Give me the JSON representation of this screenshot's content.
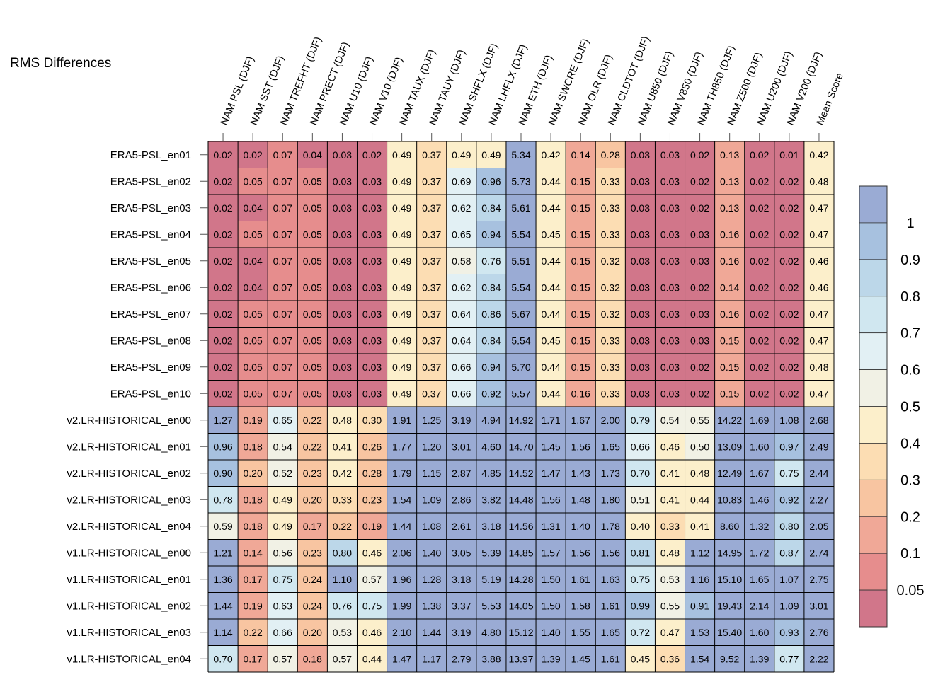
{
  "chart_data": {
    "type": "heatmap",
    "title": "RMS Differences",
    "columns": [
      "NAM PSL (DJF)",
      "NAM SST (DJF)",
      "NAM TREFHT (DJF)",
      "NAM PRECT (DJF)",
      "NAM U10 (DJF)",
      "NAM V10 (DJF)",
      "NAM TAUX (DJF)",
      "NAM TAUY (DJF)",
      "NAM SHFLX (DJF)",
      "NAM LHFLX (DJF)",
      "NAM ETH (DJF)",
      "NAM SWCRE (DJF)",
      "NAM OLR (DJF)",
      "NAM CLDTOT (DJF)",
      "NAM U850 (DJF)",
      "NAM V850 (DJF)",
      "NAM TH850 (DJF)",
      "NAM Z500 (DJF)",
      "NAM U200 (DJF)",
      "NAM V200 (DJF)",
      "Mean Score"
    ],
    "rows": [
      "ERA5-PSL_en01",
      "ERA5-PSL_en02",
      "ERA5-PSL_en03",
      "ERA5-PSL_en04",
      "ERA5-PSL_en05",
      "ERA5-PSL_en06",
      "ERA5-PSL_en07",
      "ERA5-PSL_en08",
      "ERA5-PSL_en09",
      "ERA5-PSL_en10",
      "v2.LR-HISTORICAL_en00",
      "v2.LR-HISTORICAL_en01",
      "v2.LR-HISTORICAL_en02",
      "v2.LR-HISTORICAL_en03",
      "v2.LR-HISTORICAL_en04",
      "v1.LR-HISTORICAL_en00",
      "v1.LR-HISTORICAL_en01",
      "v1.LR-HISTORICAL_en02",
      "v1.LR-HISTORICAL_en03",
      "v1.LR-HISTORICAL_en04"
    ],
    "values": [
      [
        "0.02",
        "0.02",
        "0.07",
        "0.04",
        "0.03",
        "0.02",
        "0.49",
        "0.37",
        "0.49",
        "0.49",
        "5.34",
        "0.42",
        "0.14",
        "0.28",
        "0.03",
        "0.03",
        "0.02",
        "0.13",
        "0.02",
        "0.01",
        "0.42"
      ],
      [
        "0.02",
        "0.05",
        "0.07",
        "0.05",
        "0.03",
        "0.03",
        "0.49",
        "0.37",
        "0.69",
        "0.96",
        "5.73",
        "0.44",
        "0.15",
        "0.33",
        "0.03",
        "0.03",
        "0.02",
        "0.13",
        "0.02",
        "0.02",
        "0.48"
      ],
      [
        "0.02",
        "0.04",
        "0.07",
        "0.05",
        "0.03",
        "0.03",
        "0.49",
        "0.37",
        "0.62",
        "0.84",
        "5.61",
        "0.44",
        "0.15",
        "0.33",
        "0.03",
        "0.03",
        "0.02",
        "0.13",
        "0.02",
        "0.02",
        "0.47"
      ],
      [
        "0.02",
        "0.05",
        "0.07",
        "0.05",
        "0.03",
        "0.03",
        "0.49",
        "0.37",
        "0.65",
        "0.94",
        "5.54",
        "0.45",
        "0.15",
        "0.33",
        "0.03",
        "0.03",
        "0.03",
        "0.16",
        "0.02",
        "0.02",
        "0.47"
      ],
      [
        "0.02",
        "0.04",
        "0.07",
        "0.05",
        "0.03",
        "0.03",
        "0.49",
        "0.37",
        "0.58",
        "0.76",
        "5.51",
        "0.44",
        "0.15",
        "0.32",
        "0.03",
        "0.03",
        "0.03",
        "0.16",
        "0.02",
        "0.02",
        "0.46"
      ],
      [
        "0.02",
        "0.04",
        "0.07",
        "0.05",
        "0.03",
        "0.03",
        "0.49",
        "0.37",
        "0.62",
        "0.84",
        "5.54",
        "0.44",
        "0.15",
        "0.32",
        "0.03",
        "0.03",
        "0.02",
        "0.14",
        "0.02",
        "0.02",
        "0.46"
      ],
      [
        "0.02",
        "0.05",
        "0.07",
        "0.05",
        "0.03",
        "0.03",
        "0.49",
        "0.37",
        "0.64",
        "0.86",
        "5.67",
        "0.44",
        "0.15",
        "0.32",
        "0.03",
        "0.03",
        "0.03",
        "0.16",
        "0.02",
        "0.02",
        "0.47"
      ],
      [
        "0.02",
        "0.05",
        "0.07",
        "0.05",
        "0.03",
        "0.03",
        "0.49",
        "0.37",
        "0.64",
        "0.84",
        "5.54",
        "0.45",
        "0.15",
        "0.33",
        "0.03",
        "0.03",
        "0.03",
        "0.15",
        "0.02",
        "0.02",
        "0.47"
      ],
      [
        "0.02",
        "0.05",
        "0.07",
        "0.05",
        "0.03",
        "0.03",
        "0.49",
        "0.37",
        "0.66",
        "0.94",
        "5.70",
        "0.44",
        "0.15",
        "0.33",
        "0.03",
        "0.03",
        "0.02",
        "0.15",
        "0.02",
        "0.02",
        "0.48"
      ],
      [
        "0.02",
        "0.05",
        "0.07",
        "0.05",
        "0.03",
        "0.03",
        "0.49",
        "0.37",
        "0.66",
        "0.92",
        "5.57",
        "0.44",
        "0.16",
        "0.33",
        "0.03",
        "0.03",
        "0.02",
        "0.15",
        "0.02",
        "0.02",
        "0.47"
      ],
      [
        "1.27",
        "0.19",
        "0.65",
        "0.22",
        "0.48",
        "0.30",
        "1.91",
        "1.25",
        "3.19",
        "4.94",
        "14.92",
        "1.71",
        "1.67",
        "2.00",
        "0.79",
        "0.54",
        "0.55",
        "14.22",
        "1.69",
        "1.08",
        "2.68"
      ],
      [
        "0.96",
        "0.18",
        "0.54",
        "0.22",
        "0.41",
        "0.26",
        "1.77",
        "1.20",
        "3.01",
        "4.60",
        "14.70",
        "1.45",
        "1.56",
        "1.65",
        "0.66",
        "0.46",
        "0.50",
        "13.09",
        "1.60",
        "0.97",
        "2.49"
      ],
      [
        "0.90",
        "0.20",
        "0.52",
        "0.23",
        "0.42",
        "0.28",
        "1.79",
        "1.15",
        "2.87",
        "4.85",
        "14.52",
        "1.47",
        "1.43",
        "1.73",
        "0.70",
        "0.41",
        "0.48",
        "12.49",
        "1.67",
        "0.75",
        "2.44"
      ],
      [
        "0.78",
        "0.18",
        "0.49",
        "0.20",
        "0.33",
        "0.23",
        "1.54",
        "1.09",
        "2.86",
        "3.82",
        "14.48",
        "1.56",
        "1.48",
        "1.80",
        "0.51",
        "0.41",
        "0.44",
        "10.83",
        "1.46",
        "0.92",
        "2.27"
      ],
      [
        "0.59",
        "0.18",
        "0.49",
        "0.17",
        "0.22",
        "0.19",
        "1.44",
        "1.08",
        "2.61",
        "3.18",
        "14.56",
        "1.31",
        "1.40",
        "1.78",
        "0.40",
        "0.33",
        "0.41",
        "8.60",
        "1.32",
        "0.80",
        "2.05"
      ],
      [
        "1.21",
        "0.14",
        "0.56",
        "0.23",
        "0.80",
        "0.46",
        "2.06",
        "1.40",
        "3.05",
        "5.39",
        "14.85",
        "1.57",
        "1.56",
        "1.56",
        "0.81",
        "0.48",
        "1.12",
        "14.95",
        "1.72",
        "0.87",
        "2.74"
      ],
      [
        "1.36",
        "0.17",
        "0.75",
        "0.24",
        "1.10",
        "0.57",
        "1.96",
        "1.28",
        "3.18",
        "5.19",
        "14.28",
        "1.50",
        "1.61",
        "1.63",
        "0.75",
        "0.53",
        "1.16",
        "15.10",
        "1.65",
        "1.07",
        "2.75"
      ],
      [
        "1.44",
        "0.19",
        "0.63",
        "0.24",
        "0.76",
        "0.75",
        "1.99",
        "1.38",
        "3.37",
        "5.53",
        "14.05",
        "1.50",
        "1.58",
        "1.61",
        "0.99",
        "0.55",
        "0.91",
        "19.43",
        "2.14",
        "1.09",
        "3.01"
      ],
      [
        "1.14",
        "0.22",
        "0.66",
        "0.20",
        "0.53",
        "0.46",
        "2.10",
        "1.44",
        "3.19",
        "4.80",
        "15.12",
        "1.40",
        "1.55",
        "1.65",
        "0.72",
        "0.47",
        "1.53",
        "15.40",
        "1.60",
        "0.93",
        "2.76"
      ],
      [
        "0.70",
        "0.17",
        "0.57",
        "0.18",
        "0.57",
        "0.44",
        "1.47",
        "1.17",
        "2.79",
        "3.88",
        "13.97",
        "1.39",
        "1.45",
        "1.61",
        "0.45",
        "0.36",
        "1.54",
        "9.52",
        "1.39",
        "0.77",
        "2.22"
      ]
    ],
    "colorbar": {
      "labels": [
        "1",
        "0.9",
        "0.8",
        "0.7",
        "0.6",
        "0.5",
        "0.4",
        "0.3",
        "0.2",
        "0.1",
        "0.05"
      ],
      "colors_top_to_bottom": [
        "#9aabd4",
        "#a7c1df",
        "#bcd7e9",
        "#d0e7f0",
        "#e2f0f4",
        "#f1f1e5",
        "#fcefcb",
        "#fcddb3",
        "#f8c5a1",
        "#f0a897",
        "#e68d8d",
        "#d1768a"
      ]
    }
  }
}
